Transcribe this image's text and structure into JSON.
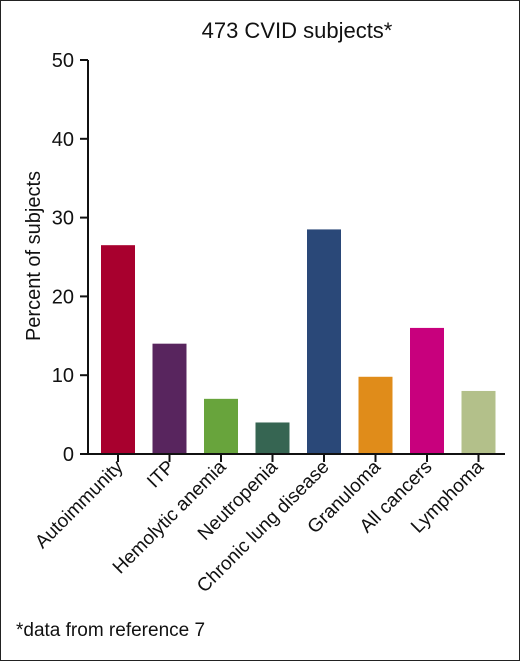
{
  "chart_data": {
    "type": "bar",
    "title": "473 CVID subjects*",
    "xlabel": "",
    "ylabel": "Percent of subjects",
    "ylim": [
      0,
      50
    ],
    "yticks": [
      0,
      10,
      20,
      30,
      40,
      50
    ],
    "categories": [
      "Autoimmunity",
      "ITP",
      "Hemolytic anemia",
      "Neutropenia",
      "Chronic lung disease",
      "Granuloma",
      "All cancers",
      "Lymphoma"
    ],
    "values": [
      26.5,
      14,
      7,
      4,
      28.5,
      9.8,
      16,
      8
    ],
    "colors": [
      "#a8002e",
      "#58255e",
      "#68a43c",
      "#366552",
      "#2a4878",
      "#e08c1a",
      "#c8007d",
      "#b3c08a"
    ],
    "grid": false
  },
  "footnote": "*data from reference 7"
}
